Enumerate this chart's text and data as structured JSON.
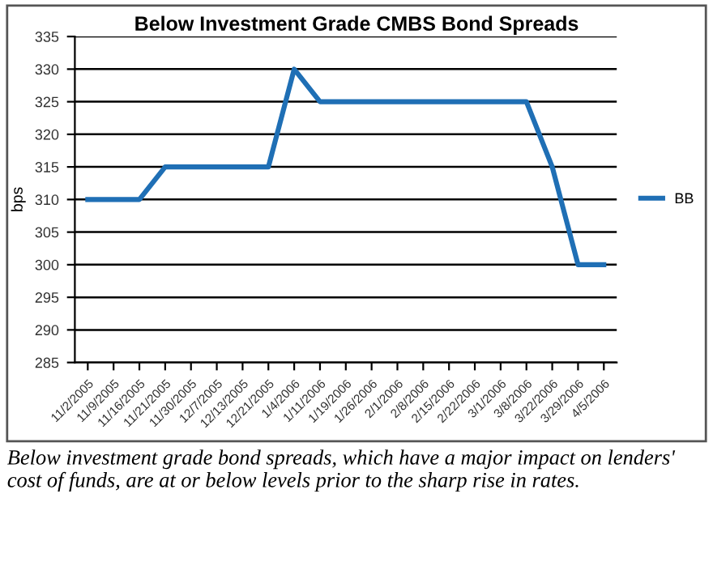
{
  "chart_data": {
    "type": "line",
    "title": "Below Investment Grade CMBS Bond Spreads",
    "ylabel": "bps",
    "categories": [
      "11/2/2005",
      "11/9/2005",
      "11/16/2005",
      "11/21/2005",
      "11/30/2005",
      "12/7/2005",
      "12/13/2005",
      "12/21/2005",
      "1/4/2006",
      "1/11/2006",
      "1/19/2006",
      "1/26/2006",
      "2/1/2006",
      "2/8/2006",
      "2/15/2006",
      "2/22/2006",
      "3/1/2006",
      "3/8/2006",
      "3/22/2006",
      "3/29/2006",
      "4/5/2006"
    ],
    "series": [
      {
        "name": "BB",
        "color": "#1f6fb5",
        "values": [
          310,
          310,
          310,
          315,
          315,
          315,
          315,
          315,
          330,
          325,
          325,
          325,
          325,
          325,
          325,
          325,
          325,
          325,
          315,
          300,
          300
        ]
      }
    ],
    "ylim": [
      285,
      335
    ],
    "yticks": [
      285,
      290,
      295,
      300,
      305,
      310,
      315,
      320,
      325,
      330,
      335
    ],
    "grid": "y",
    "legend": "right",
    "marker": "none",
    "line_style": "solid",
    "annotations": [
      "Below investment grade bond spreads, which have a major impact on lenders' cost of funds, are at or below levels prior to the sharp rise in rates."
    ]
  }
}
